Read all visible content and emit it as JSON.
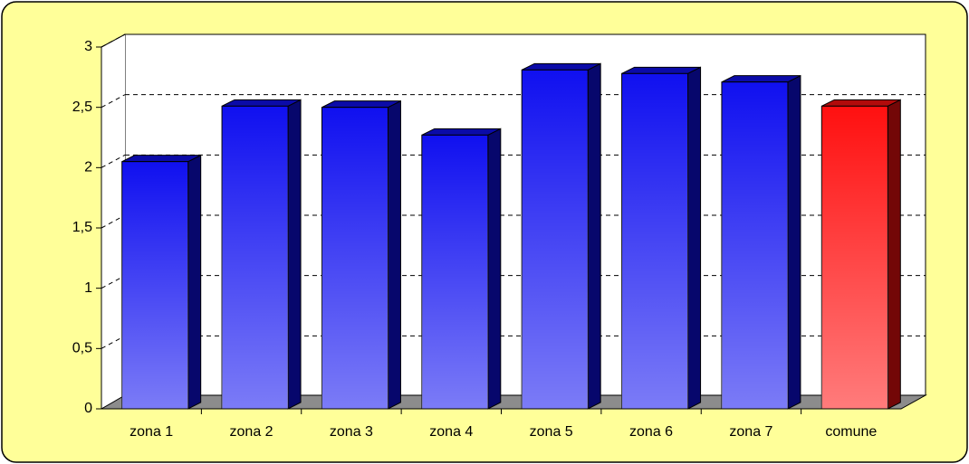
{
  "chart_data": {
    "type": "bar3d",
    "categories": [
      "zona 1",
      "zona 2",
      "zona 3",
      "zona 4",
      "zona 5",
      "zona 6",
      "zona 7",
      "comune"
    ],
    "values": [
      2.05,
      2.51,
      2.5,
      2.27,
      2.81,
      2.78,
      2.71,
      2.51
    ],
    "colors": [
      "#1010f0",
      "#1010f0",
      "#1010f0",
      "#1010f0",
      "#1010f0",
      "#1010f0",
      "#1010f0",
      "#ff1010"
    ],
    "ylim": [
      0,
      3
    ],
    "yticks": [
      0,
      {
        "value": 0.5,
        "label": "0,5"
      },
      1,
      {
        "value": 1.5,
        "label": "1,5"
      },
      2,
      {
        "value": 2.5,
        "label": "2,5"
      },
      3
    ],
    "grid": true
  }
}
